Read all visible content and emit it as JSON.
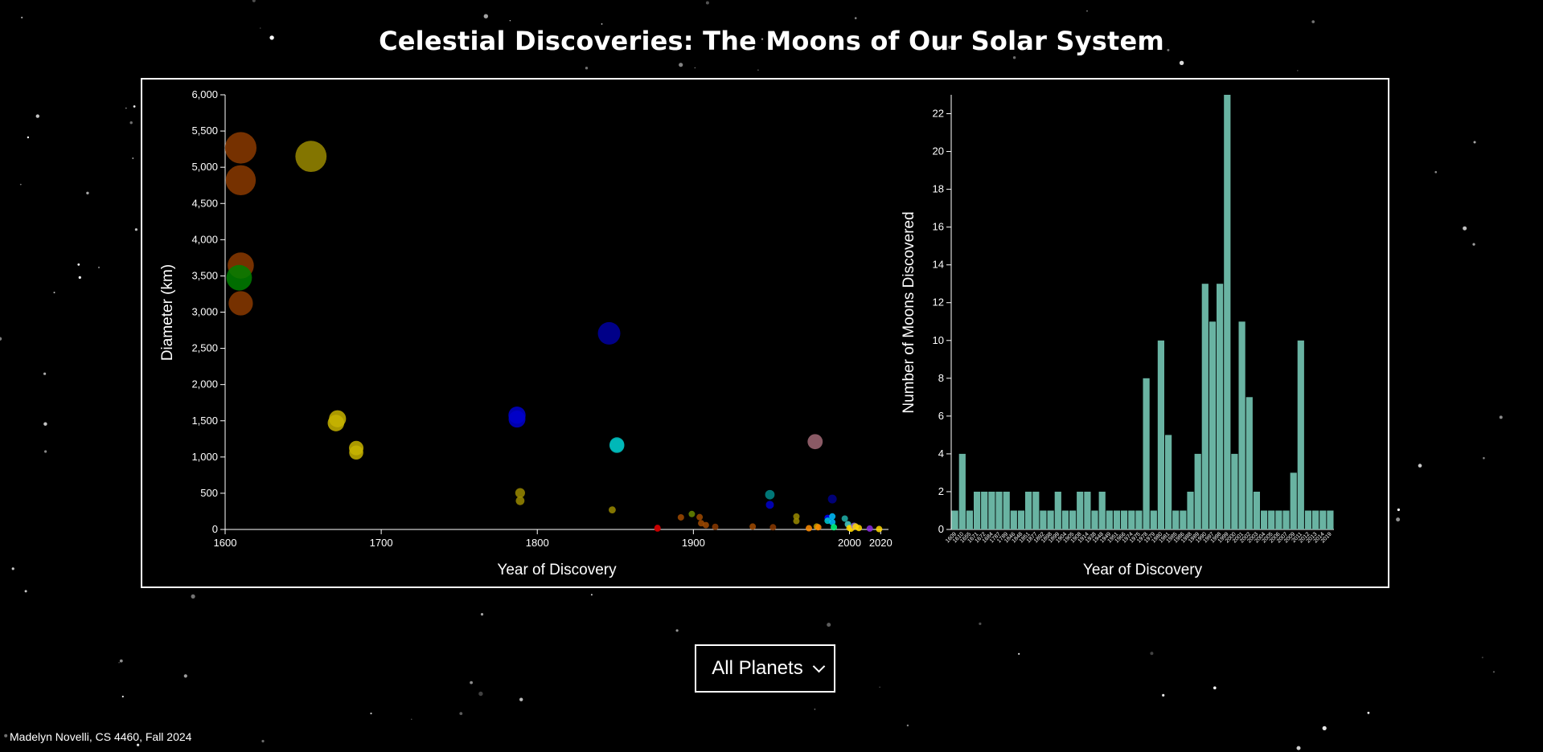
{
  "page_title": "Celestial Discoveries: The Moons of Our Solar System",
  "selector": {
    "selected": "All Planets",
    "icon": "chevron-down-icon"
  },
  "credit": "Madelyn Novelli, CS 4460, Fall 2024",
  "colors": {
    "background": "#000000",
    "bar": "#69b3a2",
    "axis": "#ffffff"
  },
  "chart_data": [
    {
      "type": "scatter",
      "xlabel": "Year of Discovery",
      "ylabel": "Diameter (km)",
      "xlim": [
        1600,
        2025
      ],
      "ylim": [
        0,
        6000
      ],
      "xticks": [
        1600,
        1700,
        1800,
        1900,
        2000,
        2020
      ],
      "yticks": [
        0,
        500,
        1000,
        1500,
        2000,
        2500,
        3000,
        3500,
        4000,
        4500,
        5000,
        5500,
        6000
      ],
      "ytick_labels": [
        "0",
        "500",
        "1,000",
        "1,500",
        "2,000",
        "2,500",
        "3,000",
        "3,500",
        "4,000",
        "4,500",
        "5,000",
        "5,500",
        "6,000"
      ],
      "points": [
        {
          "x": 1610,
          "y": 5268,
          "color": "#8B3A00"
        },
        {
          "x": 1610,
          "y": 4821,
          "color": "#8B3A00"
        },
        {
          "x": 1610,
          "y": 3643,
          "color": "#8B3A00"
        },
        {
          "x": 1610,
          "y": 3122,
          "color": "#8B3A00"
        },
        {
          "x": 1877,
          "y": 22,
          "color": "#cc0000"
        },
        {
          "x": 1877,
          "y": 12,
          "color": "#cc0000"
        },
        {
          "x": 1609,
          "y": 3475,
          "color": "#008000"
        },
        {
          "x": 1655,
          "y": 5150,
          "color": "#9a8a00"
        },
        {
          "x": 1672,
          "y": 1528,
          "color": "#c8b400"
        },
        {
          "x": 1671,
          "y": 1469,
          "color": "#c8b400"
        },
        {
          "x": 1684,
          "y": 1123,
          "color": "#c8b400"
        },
        {
          "x": 1684,
          "y": 1062,
          "color": "#c8b400"
        },
        {
          "x": 1789,
          "y": 504,
          "color": "#9a8a00"
        },
        {
          "x": 1789,
          "y": 396,
          "color": "#9a8a00"
        },
        {
          "x": 1848,
          "y": 270,
          "color": "#9a8a00"
        },
        {
          "x": 1787,
          "y": 1578,
          "color": "#0000cd"
        },
        {
          "x": 1787,
          "y": 1523,
          "color": "#0000cd"
        },
        {
          "x": 1846,
          "y": 2707,
          "color": "#0000a0"
        },
        {
          "x": 1851,
          "y": 1158,
          "color": "#00bcbc"
        },
        {
          "x": 1851,
          "y": 1170,
          "color": "#00bcbc"
        },
        {
          "x": 1978,
          "y": 1212,
          "color": "#a26a77"
        },
        {
          "x": 1892,
          "y": 167,
          "color": "#a04a00"
        },
        {
          "x": 1899,
          "y": 213,
          "color": "#6a8a00"
        },
        {
          "x": 1904,
          "y": 170,
          "color": "#a04a00"
        },
        {
          "x": 1905,
          "y": 86,
          "color": "#a04a00"
        },
        {
          "x": 1908,
          "y": 60,
          "color": "#a04a00"
        },
        {
          "x": 1914,
          "y": 36,
          "color": "#8B3A00"
        },
        {
          "x": 1938,
          "y": 40,
          "color": "#a04a00"
        },
        {
          "x": 1951,
          "y": 30,
          "color": "#8B3A00"
        },
        {
          "x": 1949,
          "y": 480,
          "color": "#008b8b"
        },
        {
          "x": 1949,
          "y": 340,
          "color": "#0000cd"
        },
        {
          "x": 1966,
          "y": 179,
          "color": "#9a8a00"
        },
        {
          "x": 1966,
          "y": 116,
          "color": "#9a8a00"
        },
        {
          "x": 1974,
          "y": 16,
          "color": "#ff8c00"
        },
        {
          "x": 1979,
          "y": 40,
          "color": "#b8a000"
        },
        {
          "x": 1980,
          "y": 30,
          "color": "#ff8c00"
        },
        {
          "x": 1986,
          "y": 160,
          "color": "#0000ff"
        },
        {
          "x": 1986,
          "y": 120,
          "color": "#00ced1"
        },
        {
          "x": 1989,
          "y": 420,
          "color": "#00008b"
        },
        {
          "x": 1989,
          "y": 180,
          "color": "#00bfff"
        },
        {
          "x": 1989,
          "y": 100,
          "color": "#00bfff"
        },
        {
          "x": 1990,
          "y": 30,
          "color": "#00ff7f"
        },
        {
          "x": 1997,
          "y": 150,
          "color": "#20b2aa"
        },
        {
          "x": 1999,
          "y": 72,
          "color": "#48d1cc"
        },
        {
          "x": 2000,
          "y": 20,
          "color": "#ffd700"
        },
        {
          "x": 2001,
          "y": 10,
          "color": "#ffd700"
        },
        {
          "x": 2003,
          "y": 50,
          "color": "#9370db"
        },
        {
          "x": 2004,
          "y": 40,
          "color": "#ffd700"
        },
        {
          "x": 2006,
          "y": 20,
          "color": "#ffd700"
        },
        {
          "x": 2013,
          "y": 12,
          "color": "#8a2be2"
        },
        {
          "x": 2019,
          "y": 5,
          "color": "#ffd700"
        }
      ]
    },
    {
      "type": "bar",
      "xlabel": "Year of Discovery",
      "ylabel": "Number of Moons Discovered",
      "ylim": [
        0,
        23
      ],
      "yticks": [
        0,
        2,
        4,
        6,
        8,
        10,
        12,
        14,
        16,
        18,
        20,
        22
      ],
      "categories": [
        "1609",
        "1610",
        "1655",
        "1671",
        "1672",
        "1684",
        "1787",
        "1789",
        "1846",
        "1848",
        "1851",
        "1877",
        "1892",
        "1898",
        "1899",
        "1904",
        "1905",
        "1908",
        "1914",
        "1938",
        "1948",
        "1949",
        "1951",
        "1966",
        "1974",
        "1975",
        "1978",
        "1979",
        "1980",
        "1981",
        "1985",
        "1986",
        "1988",
        "1989",
        "1990",
        "1997",
        "1998",
        "1999",
        "2000",
        "2001",
        "2002",
        "2003",
        "2004",
        "2005",
        "2006",
        "2007",
        "2009",
        "2011",
        "2012",
        "2013",
        "2014",
        "2019"
      ],
      "values": [
        1,
        4,
        1,
        2,
        2,
        2,
        2,
        2,
        1,
        1,
        2,
        2,
        1,
        1,
        2,
        1,
        1,
        2,
        2,
        1,
        2,
        1,
        1,
        1,
        1,
        1,
        8,
        1,
        10,
        5,
        1,
        1,
        2,
        4,
        13,
        11,
        13,
        23,
        4,
        11,
        7,
        2,
        1,
        1,
        1,
        1,
        3,
        10,
        1,
        1,
        1,
        1
      ]
    }
  ]
}
